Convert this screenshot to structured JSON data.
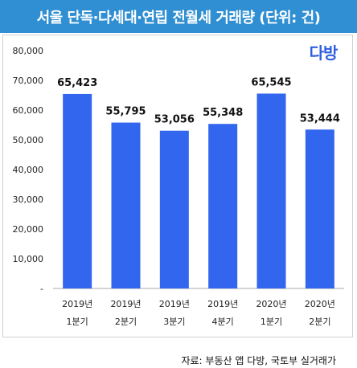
{
  "title": "서울 단독·다세대·연립 전월세 거래량 (단위: 건)",
  "logo_text": "다방",
  "source": "자료: 부동산 앱 다방, 국토부 실거래가",
  "colors": {
    "bar": "#3366ee",
    "title_bg": "#2f8fd2"
  },
  "chart_data": {
    "type": "bar",
    "categories": [
      [
        "2019년",
        "1분기"
      ],
      [
        "2019년",
        "2분기"
      ],
      [
        "2019년",
        "3분기"
      ],
      [
        "2019년",
        "4분기"
      ],
      [
        "2020년",
        "1분기"
      ],
      [
        "2020년",
        "2분기"
      ]
    ],
    "values": [
      65423,
      55795,
      53056,
      55348,
      65545,
      53444
    ],
    "value_labels": [
      "65,423",
      "55,795",
      "53,056",
      "55,348",
      "65,545",
      "53,444"
    ],
    "y_ticks": [
      "-",
      "10,000",
      "20,000",
      "30,000",
      "40,000",
      "50,000",
      "60,000",
      "70,000",
      "80,000"
    ],
    "ylim": [
      0,
      80000
    ],
    "grid": false
  }
}
